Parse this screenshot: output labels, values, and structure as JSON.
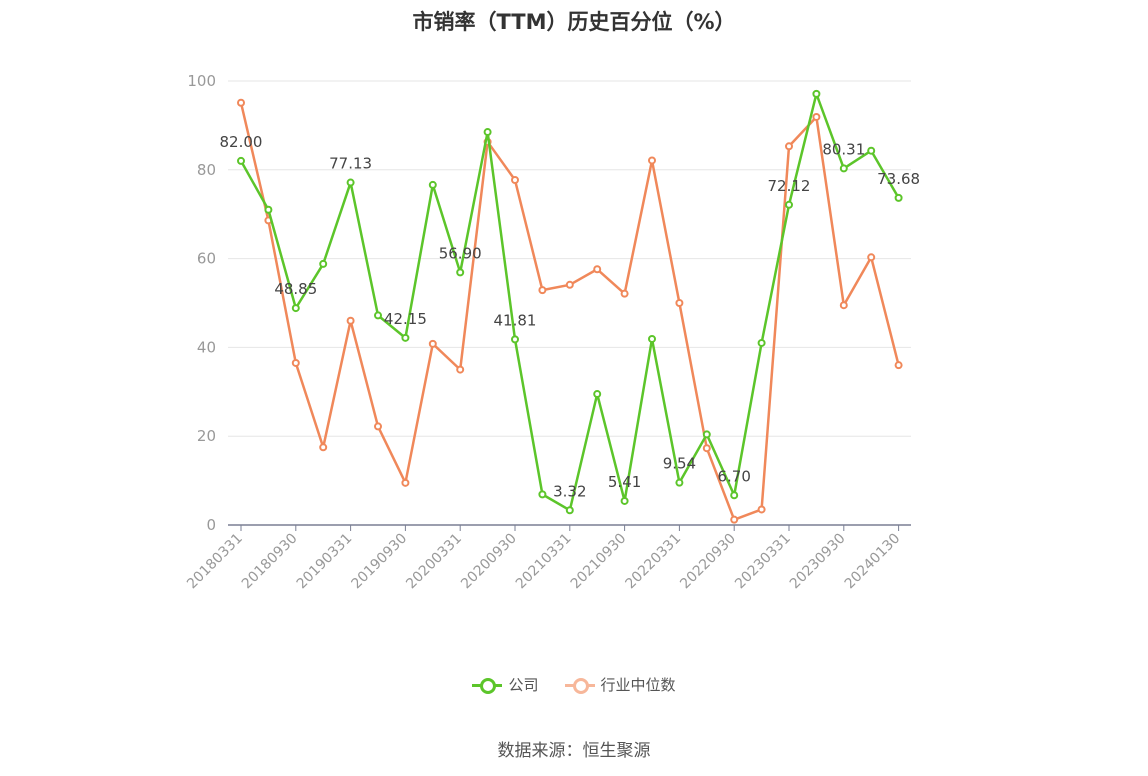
{
  "title": "市销率（TTM）历史百分位（%）",
  "source": "数据来源：恒生聚源",
  "colors": {
    "company": "#5cc52a",
    "industry": "#f0885a",
    "grid": "#e6e6e6",
    "axis": "#7a7f94",
    "tick": "#999999",
    "label": "#444444"
  },
  "chart_data": {
    "type": "line",
    "title": "市销率（TTM）历史百分位（%）",
    "ylim": [
      0,
      100
    ],
    "yticks": [
      0,
      20,
      40,
      60,
      80,
      100
    ],
    "x": [
      "20180331",
      "20180630",
      "20180930",
      "20181231",
      "20190331",
      "20190630",
      "20190930",
      "20191231",
      "20200331",
      "20200630",
      "20200930",
      "20201231",
      "20210331",
      "20210630",
      "20210930",
      "20211231",
      "20220331",
      "20220630",
      "20220930",
      "20221231",
      "20230331",
      "20230630",
      "20230930",
      "20231231",
      "20240130"
    ],
    "xticks": [
      "20180331",
      "20180930",
      "20190331",
      "20190930",
      "20200331",
      "20200930",
      "20210331",
      "20210930",
      "20220331",
      "20220930",
      "20230331",
      "20230930",
      "20240130"
    ],
    "series": [
      {
        "name": "公司",
        "values": [
          82.0,
          71.0,
          48.85,
          58.8,
          77.13,
          47.2,
          42.15,
          76.6,
          56.9,
          88.5,
          41.81,
          6.9,
          3.32,
          29.5,
          5.41,
          41.9,
          9.54,
          20.4,
          6.7,
          41.0,
          72.12,
          97.1,
          80.31,
          84.3,
          73.68
        ]
      },
      {
        "name": "行业中位数",
        "values": [
          95.1,
          68.6,
          36.5,
          17.5,
          46.0,
          22.2,
          9.5,
          40.8,
          35.0,
          86.3,
          77.7,
          52.9,
          54.1,
          57.6,
          52.1,
          82.1,
          50.0,
          17.3,
          1.2,
          3.5,
          85.3,
          91.9,
          49.5,
          60.3,
          36.0
        ]
      }
    ],
    "data_labels": [
      {
        "index": 0,
        "text": "82.00"
      },
      {
        "index": 2,
        "text": "48.85"
      },
      {
        "index": 4,
        "text": "77.13"
      },
      {
        "index": 6,
        "text": "42.15"
      },
      {
        "index": 8,
        "text": "56.90"
      },
      {
        "index": 10,
        "text": "41.81"
      },
      {
        "index": 12,
        "text": "3.32"
      },
      {
        "index": 14,
        "text": "5.41"
      },
      {
        "index": 16,
        "text": "9.54"
      },
      {
        "index": 18,
        "text": "6.70"
      },
      {
        "index": 20,
        "text": "72.12"
      },
      {
        "index": 22,
        "text": "80.31"
      },
      {
        "index": 24,
        "text": "73.68"
      }
    ],
    "legend": [
      "公司",
      "行业中位数"
    ],
    "legend_position": "bottom-center",
    "grid": true
  }
}
